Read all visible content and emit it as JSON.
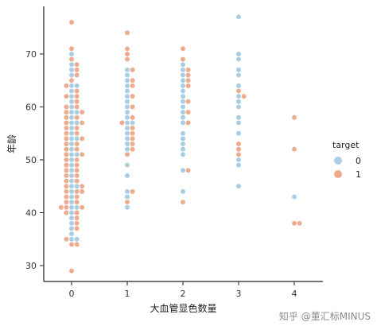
{
  "chart_data": {
    "type": "scatter",
    "subtype": "swarm",
    "xlabel": "大血管显色数量",
    "ylabel": "年龄",
    "categories": [
      "0",
      "1",
      "2",
      "3",
      "4"
    ],
    "yticks": [
      30,
      40,
      50,
      60,
      70
    ],
    "ylim": [
      27,
      79
    ],
    "grid": false,
    "legend": {
      "title": "target",
      "placement": "right",
      "entries": [
        "0",
        "1"
      ]
    },
    "colors": {
      "0": "#a9cde3",
      "1": "#eeab8e"
    },
    "series": [
      {
        "name": "0",
        "points": [
          {
            "x": "0",
            "y": 35
          },
          {
            "x": "0",
            "y": 35
          },
          {
            "x": "0",
            "y": 36
          },
          {
            "x": "0",
            "y": 37
          },
          {
            "x": "0",
            "y": 38
          },
          {
            "x": "0",
            "y": 39
          },
          {
            "x": "0",
            "y": 40
          },
          {
            "x": "0",
            "y": 41
          },
          {
            "x": "0",
            "y": 41
          },
          {
            "x": "0",
            "y": 42
          },
          {
            "x": "0",
            "y": 43
          },
          {
            "x": "0",
            "y": 44
          },
          {
            "x": "0",
            "y": 45
          },
          {
            "x": "0",
            "y": 45
          },
          {
            "x": "0",
            "y": 46
          },
          {
            "x": "0",
            "y": 47
          },
          {
            "x": "0",
            "y": 48
          },
          {
            "x": "0",
            "y": 49
          },
          {
            "x": "0",
            "y": 50
          },
          {
            "x": "0",
            "y": 51
          },
          {
            "x": "0",
            "y": 51
          },
          {
            "x": "0",
            "y": 52
          },
          {
            "x": "0",
            "y": 53
          },
          {
            "x": "0",
            "y": 54
          },
          {
            "x": "0",
            "y": 54
          },
          {
            "x": "0",
            "y": 55
          },
          {
            "x": "0",
            "y": 56
          },
          {
            "x": "0",
            "y": 57
          },
          {
            "x": "0",
            "y": 57
          },
          {
            "x": "0",
            "y": 58
          },
          {
            "x": "0",
            "y": 59
          },
          {
            "x": "0",
            "y": 59
          },
          {
            "x": "0",
            "y": 60
          },
          {
            "x": "0",
            "y": 61
          },
          {
            "x": "0",
            "y": 62
          },
          {
            "x": "0",
            "y": 63
          },
          {
            "x": "0",
            "y": 64
          },
          {
            "x": "0",
            "y": 64
          },
          {
            "x": "0",
            "y": 66
          },
          {
            "x": "0",
            "y": 67
          },
          {
            "x": "0",
            "y": 68
          },
          {
            "x": "0",
            "y": 70
          },
          {
            "x": "1",
            "y": 41
          },
          {
            "x": "1",
            "y": 43
          },
          {
            "x": "1",
            "y": 44
          },
          {
            "x": "1",
            "y": 47
          },
          {
            "x": "1",
            "y": 49
          },
          {
            "x": "1",
            "y": 52
          },
          {
            "x": "1",
            "y": 53
          },
          {
            "x": "1",
            "y": 54
          },
          {
            "x": "1",
            "y": 55
          },
          {
            "x": "1",
            "y": 56
          },
          {
            "x": "1",
            "y": 57
          },
          {
            "x": "1",
            "y": 57
          },
          {
            "x": "1",
            "y": 58
          },
          {
            "x": "1",
            "y": 59
          },
          {
            "x": "1",
            "y": 60
          },
          {
            "x": "1",
            "y": 61
          },
          {
            "x": "1",
            "y": 62
          },
          {
            "x": "1",
            "y": 63
          },
          {
            "x": "1",
            "y": 64
          },
          {
            "x": "1",
            "y": 65
          },
          {
            "x": "1",
            "y": 66
          },
          {
            "x": "1",
            "y": 67
          },
          {
            "x": "2",
            "y": 44
          },
          {
            "x": "2",
            "y": 48
          },
          {
            "x": "2",
            "y": 51
          },
          {
            "x": "2",
            "y": 52
          },
          {
            "x": "2",
            "y": 53
          },
          {
            "x": "2",
            "y": 54
          },
          {
            "x": "2",
            "y": 55
          },
          {
            "x": "2",
            "y": 57
          },
          {
            "x": "2",
            "y": 58
          },
          {
            "x": "2",
            "y": 59
          },
          {
            "x": "2",
            "y": 60
          },
          {
            "x": "2",
            "y": 61
          },
          {
            "x": "2",
            "y": 62
          },
          {
            "x": "2",
            "y": 63
          },
          {
            "x": "2",
            "y": 64
          },
          {
            "x": "2",
            "y": 65
          },
          {
            "x": "2",
            "y": 66
          },
          {
            "x": "2",
            "y": 67
          },
          {
            "x": "2",
            "y": 68
          },
          {
            "x": "3",
            "y": 45
          },
          {
            "x": "3",
            "y": 49
          },
          {
            "x": "3",
            "y": 50
          },
          {
            "x": "3",
            "y": 55
          },
          {
            "x": "3",
            "y": 57
          },
          {
            "x": "3",
            "y": 58
          },
          {
            "x": "3",
            "y": 60
          },
          {
            "x": "3",
            "y": 61
          },
          {
            "x": "3",
            "y": 62
          },
          {
            "x": "3",
            "y": 64
          },
          {
            "x": "3",
            "y": 66
          },
          {
            "x": "3",
            "y": 67
          },
          {
            "x": "3",
            "y": 69
          },
          {
            "x": "3",
            "y": 70
          },
          {
            "x": "3",
            "y": 77
          },
          {
            "x": "4",
            "y": 43
          }
        ]
      },
      {
        "name": "1",
        "points": [
          {
            "x": "0",
            "y": 29
          },
          {
            "x": "0",
            "y": 34
          },
          {
            "x": "0",
            "y": 34
          },
          {
            "x": "0",
            "y": 35
          },
          {
            "x": "0",
            "y": 37
          },
          {
            "x": "0",
            "y": 38
          },
          {
            "x": "0",
            "y": 39
          },
          {
            "x": "0",
            "y": 40
          },
          {
            "x": "0",
            "y": 40
          },
          {
            "x": "0",
            "y": 41
          },
          {
            "x": "0",
            "y": 41
          },
          {
            "x": "0",
            "y": 41
          },
          {
            "x": "0",
            "y": 42
          },
          {
            "x": "0",
            "y": 42
          },
          {
            "x": "0",
            "y": 43
          },
          {
            "x": "0",
            "y": 43
          },
          {
            "x": "0",
            "y": 44
          },
          {
            "x": "0",
            "y": 44
          },
          {
            "x": "0",
            "y": 44
          },
          {
            "x": "0",
            "y": 45
          },
          {
            "x": "0",
            "y": 45
          },
          {
            "x": "0",
            "y": 46
          },
          {
            "x": "0",
            "y": 46
          },
          {
            "x": "0",
            "y": 47
          },
          {
            "x": "0",
            "y": 47
          },
          {
            "x": "0",
            "y": 48
          },
          {
            "x": "0",
            "y": 48
          },
          {
            "x": "0",
            "y": 49
          },
          {
            "x": "0",
            "y": 49
          },
          {
            "x": "0",
            "y": 50
          },
          {
            "x": "0",
            "y": 50
          },
          {
            "x": "0",
            "y": 51
          },
          {
            "x": "0",
            "y": 51
          },
          {
            "x": "0",
            "y": 52
          },
          {
            "x": "0",
            "y": 52
          },
          {
            "x": "0",
            "y": 53
          },
          {
            "x": "0",
            "y": 53
          },
          {
            "x": "0",
            "y": 54
          },
          {
            "x": "0",
            "y": 54
          },
          {
            "x": "0",
            "y": 55
          },
          {
            "x": "0",
            "y": 55
          },
          {
            "x": "0",
            "y": 56
          },
          {
            "x": "0",
            "y": 56
          },
          {
            "x": "0",
            "y": 57
          },
          {
            "x": "0",
            "y": 57
          },
          {
            "x": "0",
            "y": 58
          },
          {
            "x": "0",
            "y": 58
          },
          {
            "x": "0",
            "y": 59
          },
          {
            "x": "0",
            "y": 59
          },
          {
            "x": "0",
            "y": 60
          },
          {
            "x": "0",
            "y": 60
          },
          {
            "x": "0",
            "y": 61
          },
          {
            "x": "0",
            "y": 62
          },
          {
            "x": "0",
            "y": 62
          },
          {
            "x": "0",
            "y": 63
          },
          {
            "x": "0",
            "y": 64
          },
          {
            "x": "0",
            "y": 65
          },
          {
            "x": "0",
            "y": 66
          },
          {
            "x": "0",
            "y": 67
          },
          {
            "x": "0",
            "y": 68
          },
          {
            "x": "0",
            "y": 69
          },
          {
            "x": "0",
            "y": 71
          },
          {
            "x": "0",
            "y": 76
          },
          {
            "x": "1",
            "y": 42
          },
          {
            "x": "1",
            "y": 44
          },
          {
            "x": "1",
            "y": 51
          },
          {
            "x": "1",
            "y": 52
          },
          {
            "x": "1",
            "y": 53
          },
          {
            "x": "1",
            "y": 54
          },
          {
            "x": "1",
            "y": 55
          },
          {
            "x": "1",
            "y": 56
          },
          {
            "x": "1",
            "y": 57
          },
          {
            "x": "1",
            "y": 58
          },
          {
            "x": "1",
            "y": 60
          },
          {
            "x": "1",
            "y": 62
          },
          {
            "x": "1",
            "y": 64
          },
          {
            "x": "1",
            "y": 65
          },
          {
            "x": "1",
            "y": 67
          },
          {
            "x": "1",
            "y": 69
          },
          {
            "x": "1",
            "y": 70
          },
          {
            "x": "1",
            "y": 71
          },
          {
            "x": "1",
            "y": 74
          },
          {
            "x": "2",
            "y": 42
          },
          {
            "x": "2",
            "y": 48
          },
          {
            "x": "2",
            "y": 57
          },
          {
            "x": "2",
            "y": 59
          },
          {
            "x": "2",
            "y": 61
          },
          {
            "x": "2",
            "y": 64
          },
          {
            "x": "2",
            "y": 65
          },
          {
            "x": "2",
            "y": 66
          },
          {
            "x": "2",
            "y": 67
          },
          {
            "x": "2",
            "y": 69
          },
          {
            "x": "2",
            "y": 71
          },
          {
            "x": "3",
            "y": 51
          },
          {
            "x": "3",
            "y": 52
          },
          {
            "x": "3",
            "y": 53
          },
          {
            "x": "3",
            "y": 62
          },
          {
            "x": "3",
            "y": 63
          },
          {
            "x": "4",
            "y": 38
          },
          {
            "x": "4",
            "y": 38
          },
          {
            "x": "4",
            "y": 52
          },
          {
            "x": "4",
            "y": 58
          }
        ]
      }
    ]
  },
  "watermark": "知乎 @董汇标MINUS"
}
